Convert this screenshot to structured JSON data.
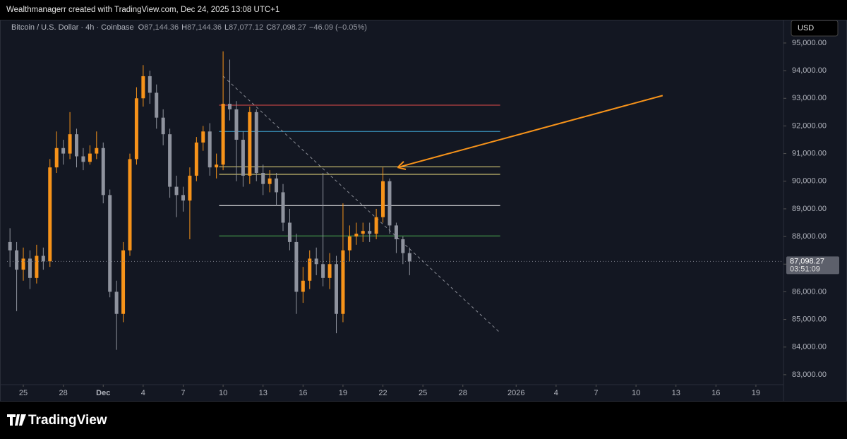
{
  "header": "Wealthmanagerr created with TradingView.com, Dec 24, 2025 13:08 UTC+1",
  "symbol": "Bitcoin / U.S. Dollar · 4h · Coinbase",
  "ohlc_legend": [
    {
      "key": "O",
      "value": "87,144.36"
    },
    {
      "key": "H",
      "value": "87,144.36"
    },
    {
      "key": "L",
      "value": "87,077.12"
    },
    {
      "key": "C",
      "value": "87,098.27"
    }
  ],
  "change": "−46.09 (−0.05%)",
  "currency": "USD",
  "last_price_label": "87,098.27",
  "countdown": "03:51:09",
  "footer_logo": "TradingView",
  "chart_data": {
    "type": "candlestick",
    "up_color": "#f7931a",
    "down_color": "#8f939e",
    "x": [
      -1.0,
      -0.5,
      0,
      0.5,
      1.0,
      1.5,
      2.0,
      2.5,
      3.0,
      3.5,
      4.0,
      4.5,
      5.0,
      5.5,
      6.0,
      6.5,
      7.0,
      7.5,
      8.0,
      8.5,
      9.0,
      9.5,
      10.0,
      10.5,
      11.0,
      11.5,
      12.0,
      12.5,
      13.0,
      13.5,
      14.0,
      14.5,
      15.0,
      15.5,
      16.0,
      16.5,
      17.0,
      17.5,
      18.0,
      18.5,
      19.0,
      19.5,
      20.0,
      20.5,
      21.0,
      21.5,
      22.0,
      22.5,
      23.0,
      23.5,
      24.0,
      24.5,
      25.0,
      25.5,
      26.0,
      26.5,
      27.0,
      27.5,
      28.0,
      28.5,
      29.0
    ],
    "open": [
      87800,
      87500,
      86800,
      87200,
      86500,
      87300,
      87100,
      90500,
      91200,
      91000,
      91700,
      90900,
      90700,
      91000,
      91200,
      89500,
      86000,
      85200,
      87500,
      90800,
      93000,
      93800,
      93200,
      92300,
      91700,
      89800,
      89500,
      89300,
      90200,
      91400,
      91800,
      90500,
      90600,
      92800,
      92600,
      91500,
      90200,
      92500,
      90300,
      89900,
      90100,
      89600,
      88500,
      87800,
      86000,
      86400,
      87200,
      87000,
      86500,
      87000,
      85200,
      87500,
      88000,
      88100,
      88200,
      88100,
      88700,
      90000,
      88400,
      87900,
      87400
    ],
    "high": [
      88300,
      87800,
      87600,
      87500,
      87700,
      87600,
      90800,
      91800,
      91500,
      92500,
      91900,
      91200,
      91300,
      91800,
      91400,
      89700,
      86400,
      87800,
      91000,
      93400,
      94200,
      94000,
      93500,
      92600,
      91900,
      90200,
      89800,
      90500,
      91600,
      92000,
      92100,
      91000,
      94700,
      94400,
      92900,
      91800,
      92700,
      92600,
      90600,
      90400,
      90300,
      89900,
      89000,
      88100,
      86900,
      87500,
      87600,
      90300,
      87400,
      87300,
      89200,
      88400,
      88500,
      88500,
      88500,
      89000,
      90500,
      90100,
      88500,
      88000,
      87600
    ],
    "low": [
      86900,
      85300,
      86400,
      86100,
      86300,
      86800,
      86900,
      90300,
      90600,
      90800,
      90500,
      90400,
      90600,
      90800,
      89200,
      85800,
      83900,
      84900,
      87300,
      90600,
      92700,
      92800,
      91900,
      91300,
      89400,
      88700,
      88900,
      87900,
      90000,
      91100,
      90200,
      90100,
      90400,
      92200,
      90000,
      89800,
      89900,
      90000,
      89500,
      89600,
      89100,
      88200,
      87500,
      85200,
      85600,
      86100,
      86600,
      86200,
      86100,
      84500,
      84900,
      87100,
      87700,
      87800,
      87800,
      87900,
      88500,
      88100,
      87400,
      87000,
      86600
    ],
    "close": [
      87500,
      86800,
      87200,
      86500,
      87300,
      87100,
      90500,
      91200,
      91000,
      91700,
      90900,
      90700,
      91000,
      91200,
      89500,
      86000,
      85200,
      87500,
      90800,
      93000,
      93800,
      93200,
      92300,
      91700,
      89800,
      89500,
      89300,
      90200,
      91400,
      91800,
      90500,
      90600,
      92800,
      92600,
      91500,
      90200,
      92500,
      90300,
      89900,
      90100,
      89600,
      88500,
      87800,
      86000,
      86400,
      87200,
      87000,
      86500,
      87000,
      85200,
      87500,
      88000,
      88100,
      88200,
      88100,
      88700,
      90000,
      88400,
      87900,
      87400,
      87098.27
    ],
    "xlim": [
      -1.22,
      57.07
    ],
    "xticks": [
      {
        "value": 0,
        "label": "25"
      },
      {
        "value": 3,
        "label": "28"
      },
      {
        "value": 6,
        "label": "Dec"
      },
      {
        "value": 9,
        "label": "4"
      },
      {
        "value": 12,
        "label": "7"
      },
      {
        "value": 15,
        "label": "10"
      },
      {
        "value": 18,
        "label": "13"
      },
      {
        "value": 21,
        "label": "16"
      },
      {
        "value": 24,
        "label": "19"
      },
      {
        "value": 27,
        "label": "22"
      },
      {
        "value": 30,
        "label": "25"
      },
      {
        "value": 33,
        "label": "28"
      },
      {
        "value": 37,
        "label": "2026"
      },
      {
        "value": 40,
        "label": "4"
      },
      {
        "value": 43,
        "label": "7"
      },
      {
        "value": 46,
        "label": "10"
      },
      {
        "value": 49,
        "label": "13"
      },
      {
        "value": 52,
        "label": "16"
      },
      {
        "value": 55,
        "label": "19"
      }
    ],
    "ylim": [
      82640,
      95790
    ],
    "yticks": [
      {
        "value": 83000,
        "label": "83,000.00"
      },
      {
        "value": 84000,
        "label": "84,000.00"
      },
      {
        "value": 85000,
        "label": "85,000.00"
      },
      {
        "value": 86000,
        "label": "86,000.00"
      },
      {
        "value": 87000,
        "label": "87,000.00"
      },
      {
        "value": 88000,
        "label": "88,000.00"
      },
      {
        "value": 89000,
        "label": "89,000.00"
      },
      {
        "value": 90000,
        "label": "90,000.00"
      },
      {
        "value": 91000,
        "label": "91,000.00"
      },
      {
        "value": 92000,
        "label": "92,000.00"
      },
      {
        "value": 93000,
        "label": "93,000.00"
      },
      {
        "value": 94000,
        "label": "94,000.00"
      },
      {
        "value": 95000,
        "label": "95,000.00"
      }
    ],
    "hlines": [
      {
        "value": 92750,
        "color": "#e04b4b",
        "start": 14.7,
        "end": 35.8
      },
      {
        "value": 91800,
        "color": "#3fa7d6",
        "start": 14.7,
        "end": 35.8
      },
      {
        "value": 90520,
        "color": "#f0e080",
        "start": 14.7,
        "end": 35.8
      },
      {
        "value": 90250,
        "color": "#f0e080",
        "start": 14.7,
        "end": 35.8
      },
      {
        "value": 89120,
        "color": "#ffffff",
        "start": 14.7,
        "end": 35.8
      },
      {
        "value": 88020,
        "color": "#4caf50",
        "start": 14.7,
        "end": 35.8
      }
    ],
    "trendline": {
      "x": [
        15.0,
        35.7
      ],
      "y": [
        93800,
        84560
      ],
      "color": "#8a8d96"
    },
    "arrow": {
      "x": [
        48.0,
        28.1
      ],
      "y": [
        93100,
        90500
      ],
      "color": "#f7931a"
    }
  }
}
